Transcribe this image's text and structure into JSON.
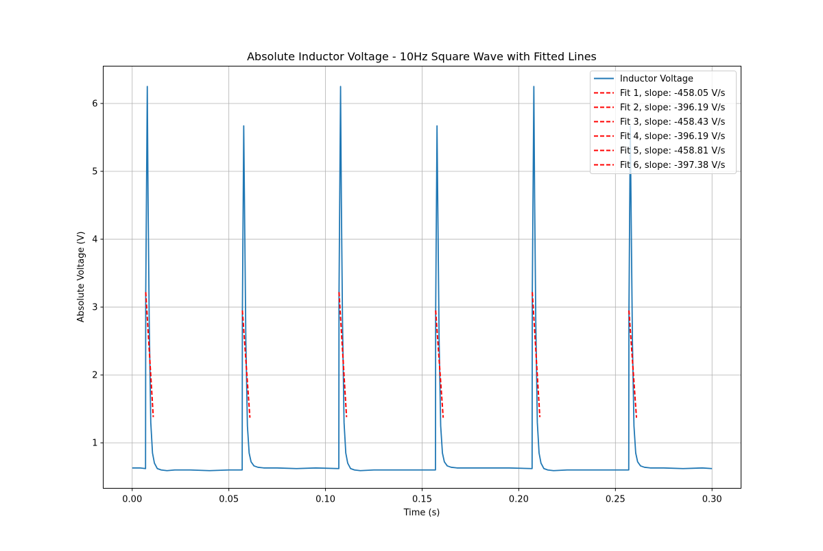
{
  "chart_data": {
    "type": "line",
    "title": "Absolute Inductor Voltage - 10Hz Square Wave with Fitted Lines",
    "xlabel": "Time (s)",
    "ylabel": "Absolute Voltage (V)",
    "xlim": [
      -0.015,
      0.315
    ],
    "ylim": [
      0.33,
      6.55
    ],
    "xticks": [
      0.0,
      0.05,
      0.1,
      0.15,
      0.2,
      0.25,
      0.3
    ],
    "xtick_labels": [
      "0.00",
      "0.05",
      "0.10",
      "0.15",
      "0.20",
      "0.25",
      "0.30"
    ],
    "yticks": [
      1,
      2,
      3,
      4,
      5,
      6
    ],
    "ytick_labels": [
      "1",
      "2",
      "3",
      "4",
      "5",
      "6"
    ],
    "grid": true,
    "legend_position": "top-right",
    "series": [
      {
        "name": "Inductor Voltage",
        "color": "#1f77b4",
        "style": "solid",
        "x": [
          0.0,
          0.004,
          0.0069,
          0.007,
          0.0078,
          0.0082,
          0.0088,
          0.0096,
          0.0105,
          0.0115,
          0.013,
          0.015,
          0.018,
          0.022,
          0.03,
          0.04,
          0.05,
          0.0569,
          0.057,
          0.0577,
          0.0582,
          0.0588,
          0.0596,
          0.0605,
          0.0615,
          0.063,
          0.065,
          0.068,
          0.075,
          0.085,
          0.095,
          0.1069,
          0.107,
          0.1078,
          0.1082,
          0.1088,
          0.1096,
          0.1105,
          0.1115,
          0.113,
          0.115,
          0.118,
          0.125,
          0.14,
          0.15,
          0.1569,
          0.157,
          0.1577,
          0.1582,
          0.1588,
          0.1596,
          0.1605,
          0.1615,
          0.163,
          0.165,
          0.168,
          0.175,
          0.185,
          0.195,
          0.2069,
          0.207,
          0.2078,
          0.2082,
          0.2088,
          0.2096,
          0.2105,
          0.2115,
          0.213,
          0.215,
          0.218,
          0.225,
          0.24,
          0.25,
          0.2569,
          0.257,
          0.2577,
          0.2582,
          0.2588,
          0.2596,
          0.2605,
          0.2615,
          0.263,
          0.265,
          0.268,
          0.275,
          0.285,
          0.295,
          0.3
        ],
        "y": [
          0.63,
          0.63,
          0.62,
          3.2,
          6.25,
          4.6,
          2.8,
          1.3,
          0.85,
          0.7,
          0.62,
          0.6,
          0.59,
          0.6,
          0.6,
          0.59,
          0.6,
          0.6,
          2.9,
          5.67,
          4.2,
          2.5,
          1.25,
          0.85,
          0.72,
          0.66,
          0.64,
          0.63,
          0.63,
          0.62,
          0.63,
          0.62,
          3.2,
          6.25,
          4.6,
          2.8,
          1.3,
          0.85,
          0.7,
          0.62,
          0.6,
          0.59,
          0.6,
          0.6,
          0.6,
          0.6,
          2.9,
          5.67,
          4.2,
          2.5,
          1.25,
          0.85,
          0.72,
          0.66,
          0.64,
          0.63,
          0.63,
          0.63,
          0.63,
          0.62,
          3.2,
          6.25,
          4.6,
          2.8,
          1.3,
          0.85,
          0.7,
          0.62,
          0.6,
          0.59,
          0.6,
          0.6,
          0.6,
          0.6,
          2.9,
          5.67,
          4.2,
          2.5,
          1.25,
          0.85,
          0.72,
          0.66,
          0.64,
          0.63,
          0.63,
          0.62,
          0.63,
          0.62
        ]
      },
      {
        "name": "Fit 1, slope: -458.05 V/s",
        "color": "#ff0000",
        "style": "dashed",
        "x": [
          0.007,
          0.0109
        ],
        "y": [
          3.22,
          1.38
        ]
      },
      {
        "name": "Fit 2, slope: -396.19 V/s",
        "color": "#ff0000",
        "style": "dashed",
        "x": [
          0.057,
          0.0609
        ],
        "y": [
          2.95,
          1.37
        ]
      },
      {
        "name": "Fit 3, slope: -458.43 V/s",
        "color": "#ff0000",
        "style": "dashed",
        "x": [
          0.107,
          0.1109
        ],
        "y": [
          3.22,
          1.38
        ]
      },
      {
        "name": "Fit 4, slope: -396.19 V/s",
        "color": "#ff0000",
        "style": "dashed",
        "x": [
          0.157,
          0.1609
        ],
        "y": [
          2.95,
          1.37
        ]
      },
      {
        "name": "Fit 5, slope: -458.81 V/s",
        "color": "#ff0000",
        "style": "dashed",
        "x": [
          0.207,
          0.2109
        ],
        "y": [
          3.22,
          1.38
        ]
      },
      {
        "name": "Fit 6, slope: -397.38 V/s",
        "color": "#ff0000",
        "style": "dashed",
        "x": [
          0.257,
          0.2609
        ],
        "y": [
          2.95,
          1.37
        ]
      }
    ]
  }
}
